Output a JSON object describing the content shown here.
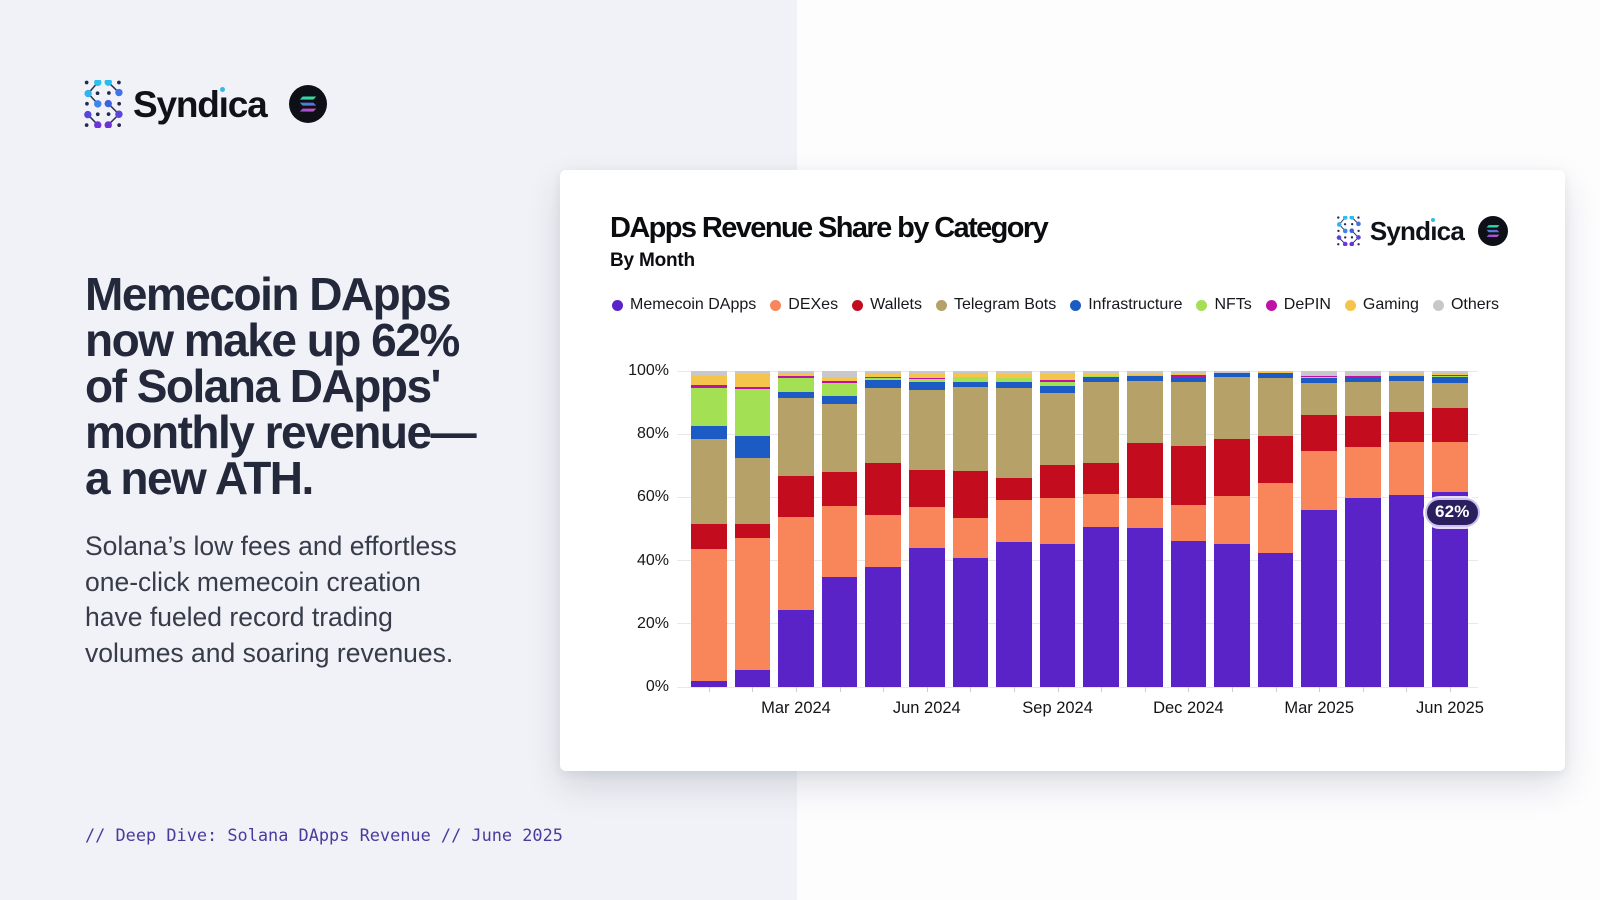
{
  "brand": {
    "name": "Syndica",
    "icon": "syndica-dotted-s-icon",
    "solana_icon": "solana-badge-icon"
  },
  "left_panel": {
    "headline_lines": [
      "Memecoin DApps",
      "now make up 62%",
      "of Solana DApps'",
      "monthly revenue—",
      "a new ATH."
    ],
    "subtext_lines": [
      "Solana’s low fees and effortless",
      "one-click memecoin creation",
      "have fueled record trading",
      "volumes and soaring revenues."
    ],
    "footer_note": "// Deep Dive: Solana DApps Revenue // June 2025"
  },
  "card": {
    "title": "DApps Revenue Share by Category",
    "subtitle": "By Month",
    "badge_label": "62%"
  },
  "chart_data": {
    "type": "bar",
    "stacked": true,
    "title": "DApps Revenue Share by Category",
    "subtitle": "By Month",
    "xlabel": "",
    "ylabel": "",
    "ylim": [
      0,
      100
    ],
    "grid": true,
    "legend_position": "top",
    "y_tick_labels": [
      "0%",
      "20%",
      "40%",
      "60%",
      "80%",
      "100%"
    ],
    "x_tick_labels": [
      "Mar 2024",
      "Jun 2024",
      "Sep 2024",
      "Dec 2024",
      "Mar 2025",
      "Jun 2025"
    ],
    "x_tick_indices": [
      2,
      5,
      8,
      11,
      14,
      17
    ],
    "categories": [
      "Jan 2024",
      "Feb 2024",
      "Mar 2024",
      "Apr 2024",
      "May 2024",
      "Jun 2024",
      "Jul 2024",
      "Aug 2024",
      "Sep 2024",
      "Oct 2024",
      "Nov 2024",
      "Dec 2024",
      "Jan 2025",
      "Feb 2025",
      "Mar 2025",
      "Apr 2025",
      "May 2025",
      "Jun 2025"
    ],
    "series": [
      {
        "name": "Memecoin DApps",
        "color": "#5A23C8",
        "values": [
          2,
          5.5,
          24.5,
          35,
          38.2,
          44,
          41,
          46.2,
          45.3,
          50.9,
          50.5,
          46.5,
          45.3,
          42.6,
          56.2,
          60,
          61,
          62
        ]
      },
      {
        "name": "DEXes",
        "color": "#F8865A",
        "values": [
          41.8,
          41.7,
          29.4,
          22.4,
          16.4,
          13.1,
          12.5,
          13,
          14.6,
          10.2,
          9.5,
          11.3,
          15.3,
          22.1,
          18.6,
          16,
          16.6,
          15.8
        ]
      },
      {
        "name": "Wallets",
        "color": "#C30D1F",
        "values": [
          8,
          4.4,
          13,
          10.9,
          16.5,
          11.6,
          15,
          7.2,
          10.5,
          10,
          17.5,
          18.6,
          17.9,
          14.9,
          11.3,
          9.8,
          9.6,
          10.6
        ]
      },
      {
        "name": "Telegram Bots",
        "color": "#B6A268",
        "values": [
          26.7,
          21.1,
          24.8,
          21.5,
          23.6,
          25.6,
          26.5,
          28.5,
          22.9,
          25.7,
          19.5,
          20.4,
          19.7,
          18.4,
          10.4,
          10.8,
          9.8,
          8
        ]
      },
      {
        "name": "Infrastructure",
        "color": "#1D5BC4",
        "values": [
          4.2,
          7,
          1.9,
          2.4,
          2.6,
          2.5,
          1.6,
          1.7,
          2.1,
          1.6,
          1.6,
          1.4,
          1.3,
          1.3,
          1.5,
          1.6,
          1.7,
          1.9
        ]
      },
      {
        "name": "NFTs",
        "color": "#A3E053",
        "values": [
          12.2,
          14.9,
          4.4,
          4.3,
          0.7,
          0.8,
          1.6,
          1.2,
          1.4,
          0.2,
          0.2,
          0.1,
          0,
          0.1,
          0.3,
          0.2,
          0.2,
          0.2
        ]
      },
      {
        "name": "DePIN",
        "color": "#BE12A6",
        "values": [
          0.7,
          0.6,
          0.6,
          0.4,
          0.2,
          0.2,
          0.2,
          0.2,
          0.4,
          0.1,
          0.1,
          0.6,
          0,
          0.1,
          0.2,
          0.1,
          0.1,
          0.5
        ]
      },
      {
        "name": "Gaming",
        "color": "#F4C44D",
        "values": [
          3.1,
          3.9,
          0.9,
          1,
          1.4,
          1.5,
          1.1,
          1.2,
          1.9,
          0.4,
          0.3,
          0.3,
          0,
          0.2,
          0.5,
          0.4,
          0.3,
          0.4
        ]
      },
      {
        "name": "Others",
        "color": "#C7C7CC",
        "values": [
          1.3,
          0.9,
          0.5,
          2.1,
          0.4,
          0.7,
          0.5,
          0.8,
          0.9,
          0.9,
          0.8,
          0.8,
          0.5,
          0.3,
          1,
          1.1,
          0.7,
          0.6
        ]
      }
    ],
    "annotation": {
      "label": "62%",
      "category": "Jun 2025",
      "value": 62
    }
  }
}
